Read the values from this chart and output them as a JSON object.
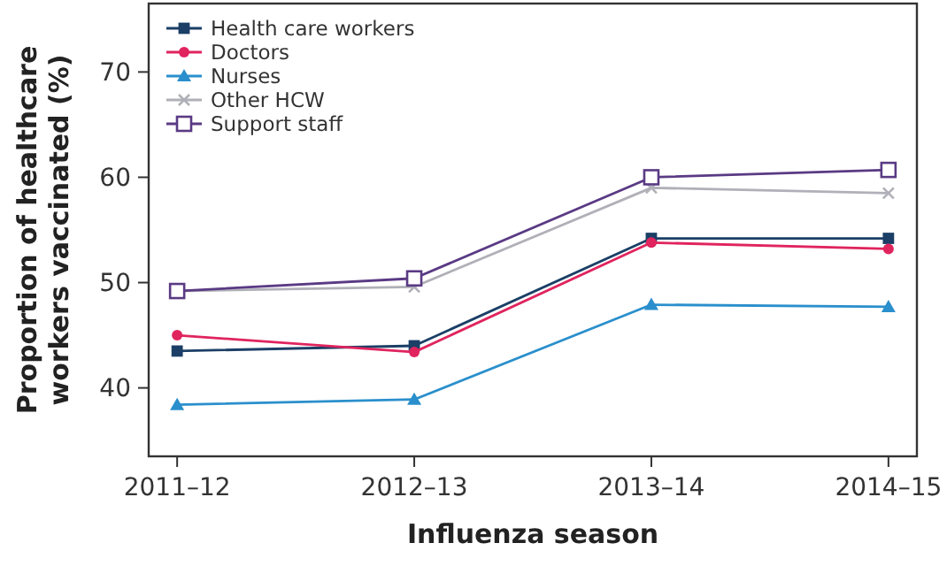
{
  "chart_data": {
    "type": "line",
    "xlabel": "Influenza season",
    "ylabel": "Proportion of healthcare workers vaccinated (%)",
    "categories": [
      "2011–12",
      "2012–13",
      "2013–14",
      "2014–15"
    ],
    "ylim": [
      33.5,
      76.5
    ],
    "yticks": [
      40,
      50,
      60,
      70
    ],
    "grid": false,
    "legend": "top left",
    "line_style": "solid",
    "series": [
      {
        "name": "Health care workers",
        "color": "#1b3f66",
        "marker": "square",
        "values": [
          43.5,
          44.0,
          54.2,
          54.2
        ]
      },
      {
        "name": "Doctors",
        "color": "#e0245e",
        "marker": "circle",
        "values": [
          45.0,
          43.4,
          53.8,
          53.2
        ]
      },
      {
        "name": "Nurses",
        "color": "#2a8fcc",
        "marker": "triangle",
        "values": [
          38.4,
          38.9,
          47.9,
          47.7
        ]
      },
      {
        "name": "Other HCW",
        "color": "#b0b0b8",
        "marker": "cross",
        "values": [
          49.2,
          49.6,
          59.0,
          58.5
        ]
      },
      {
        "name": "Support staff",
        "color": "#5a3a84",
        "marker": "square",
        "values": [
          49.2,
          50.4,
          60.0,
          60.7
        ]
      }
    ]
  }
}
